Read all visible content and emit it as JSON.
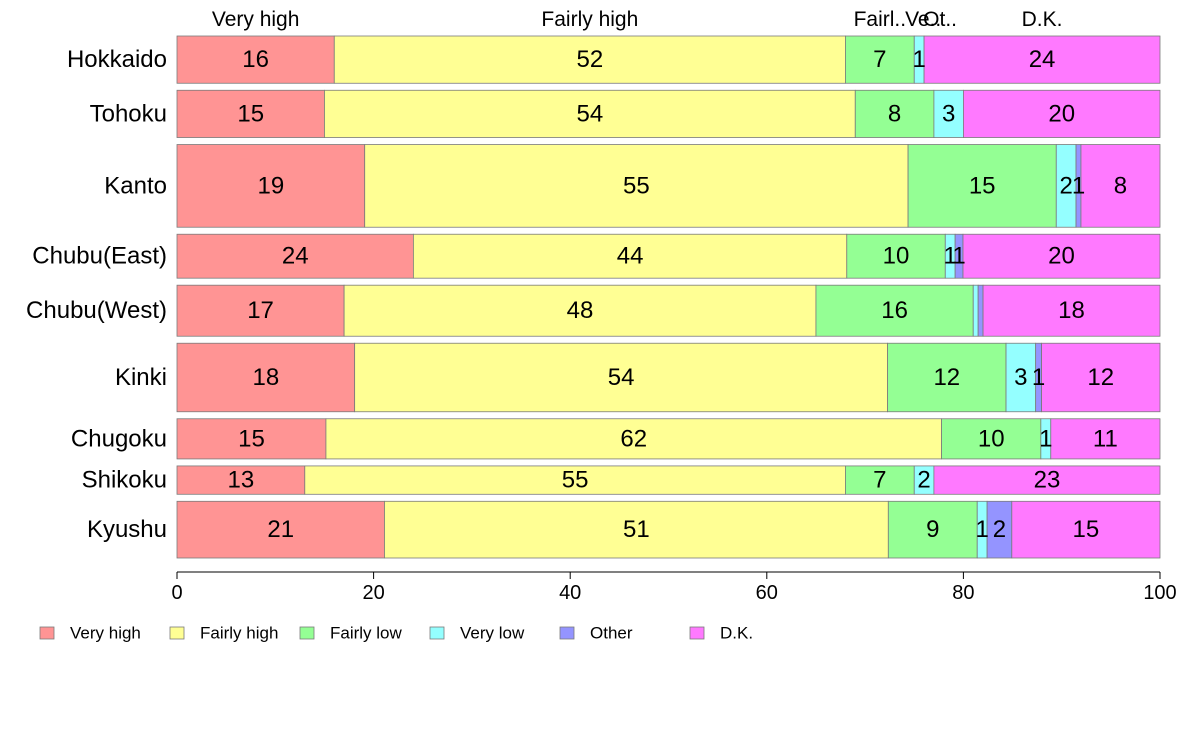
{
  "chart_data": {
    "type": "bar",
    "orientation": "horizontal",
    "stacked": true,
    "percent_stacked": true,
    "categories": [
      "Hokkaido",
      "Tohoku",
      "Kanto",
      "Chubu(East)",
      "Chubu(West)",
      "Kinki",
      "Chugoku",
      "Shikoku",
      "Kyushu"
    ],
    "series": [
      {
        "name": "Very high",
        "color": "#ff9494",
        "values": [
          16,
          15,
          19,
          24,
          17,
          18,
          15,
          13,
          21
        ],
        "labels": [
          "16",
          "15",
          "19",
          "24",
          "17",
          "18",
          "15",
          "13",
          "21"
        ]
      },
      {
        "name": "Fairly high",
        "color": "#ffff94",
        "values": [
          52,
          54,
          55,
          44,
          48,
          54,
          62,
          55,
          51
        ],
        "labels": [
          "52",
          "54",
          "55",
          "44",
          "48",
          "54",
          "62",
          "55",
          "51"
        ]
      },
      {
        "name": "Fairly low",
        "color": "#94ff94",
        "values": [
          7,
          8,
          15,
          10,
          16,
          12,
          10,
          7,
          9
        ],
        "labels": [
          "7",
          "8",
          "15",
          "10",
          "16",
          "12",
          "10",
          "7",
          "9"
        ]
      },
      {
        "name": "Very low",
        "color": "#94ffff",
        "values": [
          1,
          3,
          2,
          1,
          0.5,
          3,
          1,
          2,
          1
        ],
        "labels": [
          "1",
          "3",
          "2",
          "1",
          "",
          "3",
          "1",
          "2",
          "1"
        ]
      },
      {
        "name": "Other",
        "color": "#9494ff",
        "values": [
          0,
          0,
          0.5,
          0.8,
          0.5,
          0.6,
          0,
          0,
          2.5
        ],
        "labels": [
          "",
          "",
          "1",
          "1",
          "",
          "1",
          "",
          "",
          "2"
        ]
      },
      {
        "name": "D.K.",
        "color": "#ff79ff",
        "values": [
          24,
          20,
          8,
          20,
          18,
          12,
          11,
          23,
          15
        ],
        "labels": [
          "24",
          "20",
          "8",
          "20",
          "18",
          "12",
          "11",
          "23",
          "15"
        ]
      }
    ],
    "row_weights": [
      1,
      1,
      1.75,
      0.93,
      1.08,
      1.45,
      0.85,
      0.6,
      1.2
    ],
    "top_labels": [
      "Very high",
      "Fairly high",
      "Fairl..",
      "Ve..",
      "Ot..",
      "D.K."
    ],
    "top_label_anchor_category": 0,
    "xlim": [
      0,
      100
    ],
    "xticks": [
      0,
      20,
      40,
      60,
      80,
      100
    ],
    "xlabel": "",
    "ylabel": "",
    "title": "",
    "grid": false,
    "legend": {
      "position": "bottom-left",
      "entries": [
        "Very high",
        "Fairly high",
        "Fairly low",
        "Very low",
        "Other",
        "D.K."
      ]
    }
  }
}
